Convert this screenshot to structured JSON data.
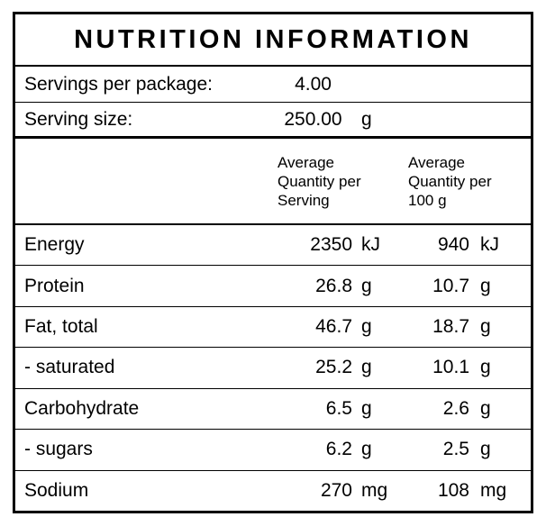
{
  "colors": {
    "border": "#000000",
    "background": "#ffffff",
    "text": "#000000"
  },
  "label": {
    "title": "NUTRITION INFORMATION",
    "servings_per_package": {
      "label": "Servings per package:",
      "value": "4.00",
      "unit": ""
    },
    "serving_size": {
      "label": "Serving size:",
      "value": "250.00",
      "unit": "g"
    },
    "columns": {
      "per_serving": "Average Quantity per Serving",
      "per_100g": "Average Quantity per 100 g"
    },
    "rows": [
      {
        "name": "Energy",
        "per_serving": "2350",
        "per_serving_unit": "kJ",
        "per_100g": "940",
        "per_100g_unit": "kJ"
      },
      {
        "name": "Protein",
        "per_serving": "26.8",
        "per_serving_unit": "g",
        "per_100g": "10.7",
        "per_100g_unit": "g"
      },
      {
        "name": "Fat, total",
        "per_serving": "46.7",
        "per_serving_unit": "g",
        "per_100g": "18.7",
        "per_100g_unit": "g"
      },
      {
        "name": "- saturated",
        "per_serving": "25.2",
        "per_serving_unit": "g",
        "per_100g": "10.1",
        "per_100g_unit": "g"
      },
      {
        "name": "Carbohydrate",
        "per_serving": "6.5",
        "per_serving_unit": "g",
        "per_100g": "2.6",
        "per_100g_unit": "g"
      },
      {
        "name": "- sugars",
        "per_serving": "6.2",
        "per_serving_unit": "g",
        "per_100g": "2.5",
        "per_100g_unit": "g"
      },
      {
        "name": "Sodium",
        "per_serving": "270",
        "per_serving_unit": "mg",
        "per_100g": "108",
        "per_100g_unit": "mg"
      }
    ]
  }
}
